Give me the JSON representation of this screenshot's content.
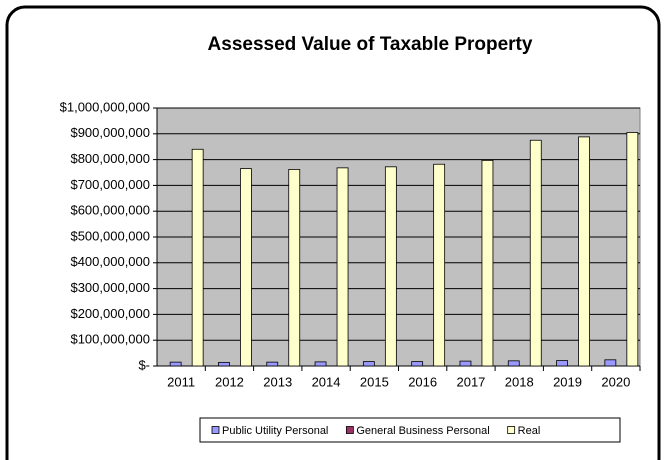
{
  "chart_data": {
    "type": "bar",
    "title": "Assessed Value of Taxable Property",
    "categories": [
      "2011",
      "2012",
      "2013",
      "2014",
      "2015",
      "2016",
      "2017",
      "2018",
      "2019",
      "2020"
    ],
    "series": [
      {
        "name": "Public Utility Personal",
        "color": "#9999ff",
        "values": [
          15000000,
          14000000,
          15000000,
          16000000,
          17000000,
          17000000,
          19000000,
          20000000,
          21000000,
          24000000
        ]
      },
      {
        "name": "General Business Personal",
        "color": "#993366",
        "values": [
          0,
          0,
          0,
          0,
          0,
          0,
          0,
          0,
          0,
          0
        ]
      },
      {
        "name": "Real",
        "color": "#ffffcc",
        "values": [
          840000000,
          765000000,
          762000000,
          768000000,
          772000000,
          782000000,
          797000000,
          875000000,
          888000000,
          905000000
        ]
      }
    ],
    "ylim": [
      0,
      1000000000
    ],
    "yticks": [
      {
        "value": 0,
        "label": "$-"
      },
      {
        "value": 100000000,
        "label": "$100,000,000"
      },
      {
        "value": 200000000,
        "label": "$200,000,000"
      },
      {
        "value": 300000000,
        "label": "$300,000,000"
      },
      {
        "value": 400000000,
        "label": "$400,000,000"
      },
      {
        "value": 500000000,
        "label": "$500,000,000"
      },
      {
        "value": 600000000,
        "label": "$600,000,000"
      },
      {
        "value": 700000000,
        "label": "$700,000,000"
      },
      {
        "value": 800000000,
        "label": "$800,000,000"
      },
      {
        "value": 900000000,
        "label": "$900,000,000"
      },
      {
        "value": 1000000000,
        "label": "$1,000,000,000"
      }
    ],
    "grid": true,
    "legend": "bottom"
  }
}
